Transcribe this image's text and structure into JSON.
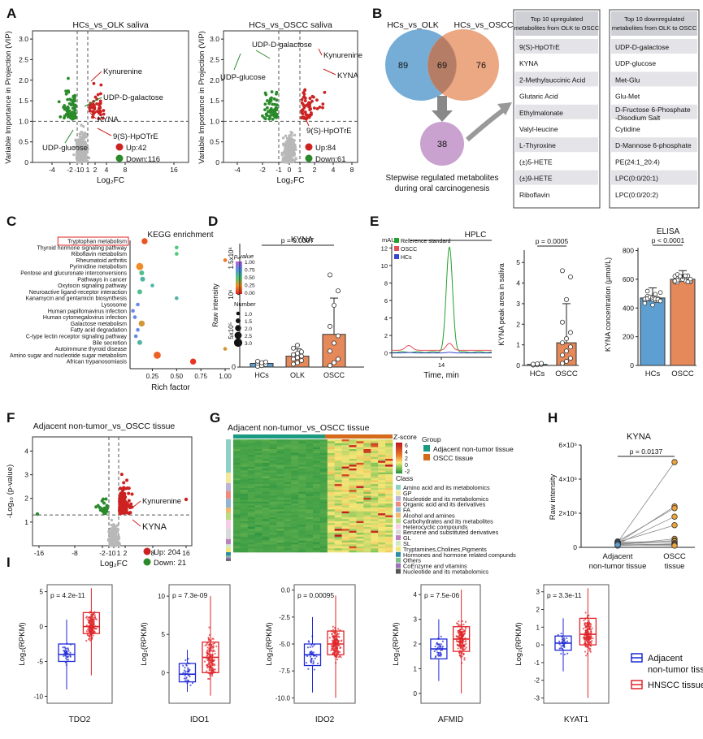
{
  "panels": {
    "A": "A",
    "B": "B",
    "C": "C",
    "D": "D",
    "E": "E",
    "F": "F",
    "G": "G",
    "H": "H",
    "I": "I"
  },
  "colors": {
    "up": "#cc2222",
    "down": "#2a8a2a",
    "ns": "#b8b8b8",
    "blue": "#5d9fd0",
    "orange": "#e5895a",
    "purple": "#c9a2cf",
    "box_adj": "#1f2ad6",
    "box_tum": "#e0252a"
  },
  "chart_data": [
    {
      "id": "A1",
      "type": "scatter",
      "title": "HCs_vs_OLK saliva",
      "xlabel": "Log₂FC",
      "ylabel": "Variable Importance in Projection (VIP)",
      "xticks": [
        "-4",
        "-2",
        "-1",
        "0",
        "1",
        "2",
        "4",
        "8",
        "16"
      ],
      "yticks": [
        "0",
        "0.5",
        "1.0",
        "1.5",
        "2.0",
        "2.5",
        "3.0"
      ],
      "ylim": [
        0,
        3.2
      ],
      "threshold_vip": 1.0,
      "annotations": [
        {
          "label": "Kynurenine"
        },
        {
          "label": "UDP-D-galactose"
        },
        {
          "label": "KYNA"
        },
        {
          "label": "9(S)-HpOTrE"
        },
        {
          "label": "UDP-glucose"
        }
      ],
      "legend": [
        {
          "label": "Up:42",
          "color": "#cc2222"
        },
        {
          "label": "Down:116",
          "color": "#2a8a2a"
        }
      ],
      "up_count": 42,
      "down_count": 116
    },
    {
      "id": "A2",
      "type": "scatter",
      "title": "HCs_vs_OSCC saliva",
      "xlabel": "Log₂FC",
      "ylabel": "Variable Importance in Projection (VIP)",
      "xticks": [
        "-4",
        "-2",
        "-1",
        "0",
        "1",
        "2",
        "4",
        "8"
      ],
      "yticks": [
        "0",
        "0.5",
        "1.0",
        "1.5",
        "2.0",
        "2.5",
        "3.0"
      ],
      "ylim": [
        0,
        3.2
      ],
      "threshold_vip": 1.0,
      "annotations": [
        {
          "label": "UDP-D-galactose"
        },
        {
          "label": "Kynurenine"
        },
        {
          "label": "UDP-glucose"
        },
        {
          "label": "KYNA"
        },
        {
          "label": "9(S)-HpOTrE"
        }
      ],
      "legend": [
        {
          "label": "Up:84",
          "color": "#cc2222"
        },
        {
          "label": "Down:61",
          "color": "#2a8a2a"
        }
      ],
      "up_count": 84,
      "down_count": 61
    },
    {
      "id": "B",
      "type": "venn",
      "sets": [
        {
          "label": "HCs_vs_OLK",
          "only": 89
        },
        {
          "label": "HCs_vs_OSCC",
          "only": 76
        }
      ],
      "intersection": 69,
      "stepwise": 38,
      "caption": [
        "Stepwise regulated metabolites",
        "during oral carcinogenesis"
      ]
    },
    {
      "id": "B_up",
      "type": "table",
      "header": [
        "Top 10 upregulated",
        "metabolites from OLK to OSCC"
      ],
      "rows": [
        "9(S)-HpOTrE",
        "KYNA",
        "2-Methylsuccinic Acid",
        "Glutaric Acid",
        "Ethylmalonate",
        "Valyl-leucine",
        "L-Thyroxine",
        "(±)5-HETE",
        "(±)9-HETE",
        "Riboflavin"
      ]
    },
    {
      "id": "B_down",
      "type": "table",
      "header": [
        "Top 10 downregulated",
        "metabolites from OLK to OSCC"
      ],
      "rows": [
        "UDP-D-galactose",
        "UDP-glucose",
        "Met-Glu",
        "Glu-Met",
        "D-Fructose 6-Phosphate -Disodium Salt",
        "Cytidine",
        "D-Mannose 6-phosphate",
        "PE(24:1_20:4)",
        "LPC(0:0/20:1)",
        "LPC(0:0/20:2)"
      ]
    },
    {
      "id": "C",
      "type": "scatter",
      "title": "KEGG enrichment",
      "xlabel": "Rich factor",
      "xticks": [
        "0.25",
        "0.50",
        "0.75",
        "1.00"
      ],
      "xlim": [
        0.02,
        1.05
      ],
      "highlight": "Tryptophan metabolism",
      "pathways": [
        {
          "name": "Tryptophan metabolism",
          "rich": 0.17,
          "size": 2.0,
          "p": 0.12
        },
        {
          "name": "Thyroid hormone signaling pathway",
          "rich": 0.5,
          "size": 1.0,
          "p": 0.5
        },
        {
          "name": "Riboflavin metabolism",
          "rich": 0.5,
          "size": 1.0,
          "p": 0.5
        },
        {
          "name": "Rheumatoid arthritis",
          "rich": 1.0,
          "size": 1.0,
          "p": 0.2
        },
        {
          "name": "Pyrimidine metabolism",
          "rich": 0.12,
          "size": 2.5,
          "p": 0.25
        },
        {
          "name": "Pentose and glucuronate interconversions",
          "rich": 0.14,
          "size": 1.5,
          "p": 0.55
        },
        {
          "name": "Pathways in cancer",
          "rich": 0.15,
          "size": 1.5,
          "p": 0.6
        },
        {
          "name": "Oxytocin signaling pathway",
          "rich": 0.25,
          "size": 1.0,
          "p": 0.6
        },
        {
          "name": "Neuroactive ligand-receptor interaction",
          "rich": 0.12,
          "size": 1.5,
          "p": 0.55
        },
        {
          "name": "Kanamycin and gentamicin biosynthesis",
          "rich": 0.5,
          "size": 1.0,
          "p": 0.6
        },
        {
          "name": "Lysosome",
          "rich": 0.1,
          "size": 1.0,
          "p": 0.8
        },
        {
          "name": "Human papillomavirus infection",
          "rich": 0.05,
          "size": 1.0,
          "p": 0.8
        },
        {
          "name": "Human cytomegalovirus infection",
          "rich": 0.07,
          "size": 1.0,
          "p": 0.8
        },
        {
          "name": "Galactose metabolism",
          "rich": 0.14,
          "size": 2.0,
          "p": 0.3
        },
        {
          "name": "Fatty acid degradation",
          "rich": 0.1,
          "size": 1.0,
          "p": 0.8
        },
        {
          "name": "C-type lectin receptor signaling pathway",
          "rich": 0.08,
          "size": 1.0,
          "p": 0.8
        },
        {
          "name": "Bile secretion",
          "rich": 0.12,
          "size": 1.5,
          "p": 0.6
        },
        {
          "name": "Autoimmune thyroid disease",
          "rich": 1.0,
          "size": 1.0,
          "p": 0.3
        },
        {
          "name": "Amino sugar and nucleotide sugar metabolism",
          "rich": 0.3,
          "size": 2.5,
          "p": 0.15
        },
        {
          "name": "African trypanosomiasis",
          "rich": 0.67,
          "size": 2.0,
          "p": 0.05
        }
      ],
      "pvalue_legend": {
        "title": "p value",
        "ticks": [
          "1.00",
          "0.75",
          "0.50",
          "0.25",
          "0.00"
        ]
      },
      "number_legend": {
        "title": "Number",
        "values": [
          "1.0",
          "1.5",
          "2.0",
          "2.5",
          "3.0"
        ]
      }
    },
    {
      "id": "D",
      "type": "bar",
      "title": "KYNA",
      "ylabel": "Raw intensity",
      "categories": [
        "HCs",
        "OLK",
        "OSCC"
      ],
      "values": [
        50000,
        150000,
        450000
      ],
      "errors": [
        30000,
        100000,
        500000
      ],
      "yticks": [
        "0",
        "5x10⁵",
        "10⁶",
        "1.5x10⁶"
      ],
      "ylim": [
        0,
        1700000
      ],
      "pvalue": "p = 0.0307",
      "points": [
        [
          10000,
          20000,
          35000,
          50000,
          60000,
          70000,
          80000
        ],
        [
          40000,
          60000,
          90000,
          110000,
          130000,
          150000,
          170000,
          190000,
          210000,
          260000,
          300000
        ],
        [
          20000,
          60000,
          110000,
          220000,
          330000,
          430000,
          560000,
          850000,
          1050000,
          1270000
        ]
      ]
    },
    {
      "id": "E1",
      "type": "line",
      "title": "HPLC",
      "xlabel": "Time, min",
      "ylabel": "mAU",
      "xticks": [
        "14"
      ],
      "yticks": [
        "0",
        "2",
        "4",
        "6",
        "8",
        "10",
        "12"
      ],
      "ylim": [
        -0.5,
        12.5
      ],
      "series": [
        {
          "name": "Reference standard",
          "color": "#22a02a",
          "peak": 12,
          "peak2": 2.3
        },
        {
          "name": "OSCC",
          "color": "#e0505a",
          "peak": 0.8,
          "peak2": 0.55
        },
        {
          "name": "HCs",
          "color": "#3545d0",
          "peak": 0.08,
          "peak2": 0.05
        }
      ]
    },
    {
      "id": "E2",
      "type": "bar",
      "ylabel": "KYNA peak area in saliva",
      "categories": [
        "HCs",
        "OSCC"
      ],
      "values": [
        0.05,
        1.1
      ],
      "errors": [
        0.05,
        1.9
      ],
      "yticks": [
        "0",
        "1",
        "2",
        "3",
        "4",
        "5"
      ],
      "ylim": [
        0,
        5.6
      ],
      "pvalue": "p = 0.0005",
      "points": [
        [
          0.02,
          0.03,
          0.05,
          0.06,
          0.08,
          0.1
        ],
        [
          0.1,
          0.2,
          0.35,
          0.5,
          0.7,
          0.9,
          1.1,
          1.3,
          1.6,
          2.1,
          3.2,
          4.3,
          4.6
        ]
      ]
    },
    {
      "id": "E3",
      "type": "bar",
      "title": "ELISA",
      "ylabel": "KYNA concentration (µmol/L)",
      "categories": [
        "HCs",
        "OSCC"
      ],
      "values": [
        470,
        600
      ],
      "errors": [
        70,
        60
      ],
      "yticks": [
        "0",
        "200",
        "400",
        "600",
        "800"
      ],
      "ylim": [
        0,
        820
      ],
      "pvalue": "p < 0.0001"
    },
    {
      "id": "F",
      "type": "scatter",
      "title": "Adjacent non-tumor_vs_OSCC tissue",
      "xlabel": "Log₂FC",
      "ylabel": "-Log₁₀ (p-value)",
      "xticks": [
        "-16",
        "-8",
        "-2",
        "-1",
        "0",
        "1",
        "2",
        "8",
        "16"
      ],
      "yticks": [
        "1",
        "2",
        "3",
        "4"
      ],
      "ylim": [
        0,
        4.6
      ],
      "annotations": [
        {
          "label": "Kynurenine"
        },
        {
          "label": "KYNA"
        }
      ],
      "legend": [
        {
          "label": "Up: 204",
          "color": "#cc2222"
        },
        {
          "label": "Down: 21",
          "color": "#2a8a2a"
        }
      ]
    },
    {
      "id": "G",
      "type": "heatmap",
      "title": "Adjacent non-tumor_vs_OSCC tissue",
      "zscore_label": "Z-score",
      "zscore_ticks": [
        "6",
        "4",
        "2",
        "0",
        "-2"
      ],
      "group_title": "Group",
      "groups": [
        {
          "label": "Adjacent non-tumor tissue",
          "color": "#1a9a80"
        },
        {
          "label": "OSCC tissue",
          "color": "#d46a1a"
        }
      ],
      "class_title": "Class",
      "classes": [
        {
          "label": "Amino acid and its metabolomics",
          "color": "#8ed0c4"
        },
        {
          "label": "GP",
          "color": "#f3e99a"
        },
        {
          "label": "Nucleotide and its metabolomics",
          "color": "#b9b3d8"
        },
        {
          "label": "Organic acid and its derivatives",
          "color": "#f08a7f"
        },
        {
          "label": "FA",
          "color": "#8fb4d4"
        },
        {
          "label": "Alcohol and amines",
          "color": "#f2b768"
        },
        {
          "label": "Carbohydrates and its metabolites",
          "color": "#b8dc7e"
        },
        {
          "label": "Heterocyclic compounds",
          "color": "#f6cde3"
        },
        {
          "label": "Benzene and substituted derivatives",
          "color": "#d9d9d9"
        },
        {
          "label": "GL",
          "color": "#bc82bd"
        },
        {
          "label": "SL",
          "color": "#cfe9c4"
        },
        {
          "label": "Tryptamines,Cholines,Pigments",
          "color": "#f2e57a"
        },
        {
          "label": "Hormones and hormone related compunds",
          "color": "#2d8aa8"
        },
        {
          "label": "Others",
          "color": "#7fc08c"
        },
        {
          "label": "CoEnzyme and vitamins",
          "color": "#9a70b8"
        },
        {
          "label": "Nucleotide and its metabolomics",
          "color": "#555555"
        }
      ]
    },
    {
      "id": "H",
      "type": "scatter",
      "title": "KYNA",
      "ylabel": "Raw intensity",
      "categories": [
        "Adjacent non-tumor tissue",
        "OSCC tissue"
      ],
      "cat_lines": [
        [
          "Adjacent",
          "non-tumor tissue"
        ],
        [
          "OSCC",
          "tissue"
        ]
      ],
      "yticks": [
        "0",
        "2×10⁶",
        "4×10⁶",
        "6×10⁶"
      ],
      "ylim": [
        0,
        6000000
      ],
      "pvalue": "p = 0.0137",
      "pairs": [
        [
          300000,
          5000000
        ],
        [
          250000,
          2400000
        ],
        [
          350000,
          2300000
        ],
        [
          200000,
          1800000
        ],
        [
          300000,
          1300000
        ],
        [
          150000,
          500000
        ],
        [
          200000,
          400000
        ],
        [
          300000,
          350000
        ],
        [
          250000,
          250000
        ],
        [
          100000,
          200000
        ],
        [
          200000,
          150000
        ],
        [
          150000,
          100000
        ]
      ]
    },
    {
      "id": "I",
      "type": "box",
      "ylabel": "Log₂(RPKM)",
      "legend": [
        {
          "lines": [
            "Adjacent",
            "non-tumor tissue"
          ],
          "color": "#1f2ad6"
        },
        {
          "lines": [
            "HNSCC tissue"
          ],
          "color": "#e0252a"
        }
      ],
      "genes": [
        {
          "gene": "TDO2",
          "pvalue": "p = 4.2e-11",
          "yticks": [
            "-10",
            "-5",
            "0",
            "5"
          ],
          "ylim": [
            -11,
            6
          ],
          "adjacent": {
            "min": -9,
            "q1": -5,
            "median": -4,
            "q3": -2.5,
            "max": 1
          },
          "tumor": {
            "min": -7,
            "q1": -1,
            "median": 0,
            "q3": 2,
            "max": 5.5
          }
        },
        {
          "gene": "IDO1",
          "pvalue": "p = 7.3e-09",
          "yticks": [
            "0",
            "5",
            "10"
          ],
          "ylim": [
            -4,
            11.5
          ],
          "adjacent": {
            "min": -2.5,
            "q1": -1.2,
            "median": -0.2,
            "q3": 1.2,
            "max": 3
          },
          "tumor": {
            "min": -3,
            "q1": 0,
            "median": 2,
            "q3": 4,
            "max": 10
          }
        },
        {
          "gene": "IDO2",
          "pvalue": "p = 0.00095",
          "yticks": [
            "-10.0",
            "-7.5",
            "-5.0",
            "-2.5",
            "0.0"
          ],
          "ylim": [
            -10.5,
            0.5
          ],
          "adjacent": {
            "min": -9.5,
            "q1": -7,
            "median": -6,
            "q3": -5,
            "max": -2.5
          },
          "tumor": {
            "min": -10,
            "q1": -6,
            "median": -5,
            "q3": -3.8,
            "max": -0.5
          }
        },
        {
          "gene": "AFMID",
          "pvalue": "p = 7.5e-06",
          "yticks": [
            "0",
            "1",
            "2",
            "3",
            "4"
          ],
          "ylim": [
            -0.4,
            4.4
          ],
          "adjacent": {
            "min": 0.5,
            "q1": 1.4,
            "median": 1.8,
            "q3": 2.2,
            "max": 3
          },
          "tumor": {
            "min": 0,
            "q1": 1.7,
            "median": 2.2,
            "q3": 2.7,
            "max": 4.2
          }
        },
        {
          "gene": "KYAT1",
          "pvalue": "p = 3.3e-11",
          "yticks": [
            "-3",
            "-2",
            "-1",
            "0",
            "1",
            "2",
            "3"
          ],
          "ylim": [
            -3.3,
            3.4
          ],
          "adjacent": {
            "min": -1.5,
            "q1": -0.3,
            "median": 0.1,
            "q3": 0.5,
            "max": 1.5
          },
          "tumor": {
            "min": -3,
            "q1": 0,
            "median": 0.6,
            "q3": 1.5,
            "max": 3.2
          }
        }
      ]
    }
  ]
}
